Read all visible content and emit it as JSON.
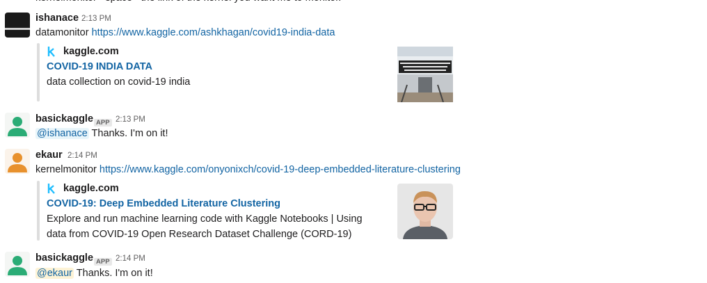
{
  "top_fragment": "kernelmonitor <space> the link of the kernel you want me to monitor.",
  "messages": [
    {
      "author": "ishanace",
      "time": "2:13 PM",
      "text": "datamonitor",
      "link": "https://www.kaggle.com/ashkhagan/covid19-india-data",
      "unfurl": {
        "site": "kaggle.com",
        "title": "COVID-19 INDIA DATA",
        "description": "data collection on covid-19 india"
      }
    },
    {
      "author": "basickaggle",
      "badge": "APP",
      "time": "2:13 PM",
      "mention": "@ishanace",
      "text": "Thanks. I'm on it!"
    },
    {
      "author": "ekaur",
      "time": "2:14 PM",
      "text": "kernelmonitor",
      "link": "https://www.kaggle.com/onyonixch/covid-19-deep-embedded-literature-clustering",
      "unfurl": {
        "site": "kaggle.com",
        "title": "COVID-19: Deep Embedded Literature Clustering",
        "description": "Explore and run machine learning code with Kaggle Notebooks | Using data from COVID-19 Open Research Dataset Challenge (CORD-19)"
      }
    },
    {
      "author": "basickaggle",
      "badge": "APP",
      "time": "2:14 PM",
      "mention": "@ekaur",
      "text": "Thanks. I'm on it!"
    }
  ]
}
